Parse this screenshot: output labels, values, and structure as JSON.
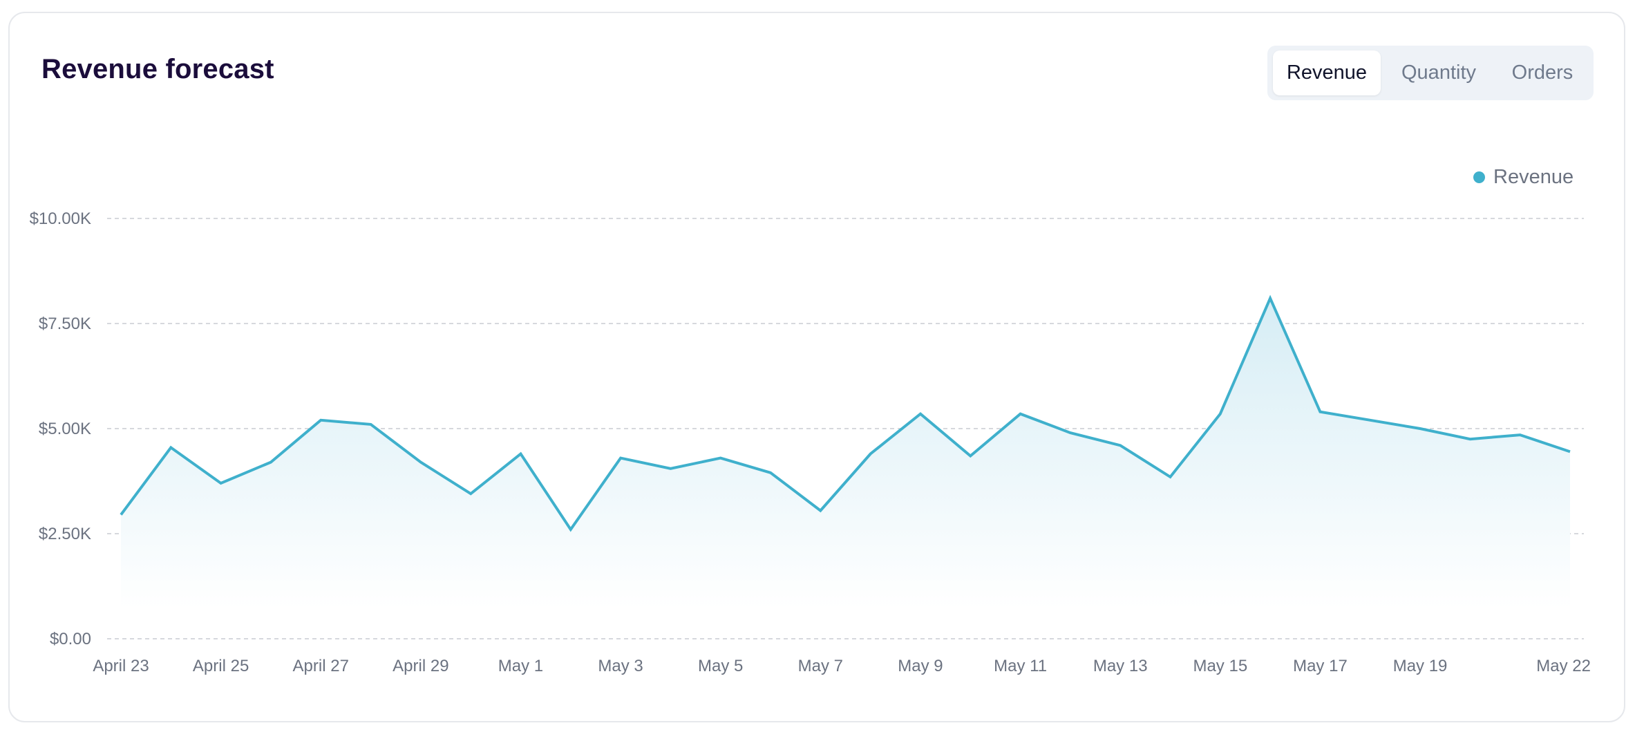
{
  "card": {
    "title": "Revenue forecast"
  },
  "tabs": [
    {
      "label": "Revenue",
      "active": true
    },
    {
      "label": "Quantity",
      "active": false
    },
    {
      "label": "Orders",
      "active": false
    }
  ],
  "colors": {
    "series": "#3fb0cc",
    "area_top": "#d6edf5",
    "area_bottom": "#ffffff",
    "grid": "#c9ccd2",
    "title": "#1b0d3b"
  },
  "chart_data": {
    "type": "area",
    "x_ticks": [
      "April 23",
      "April 25",
      "April 27",
      "April 29",
      "May 1",
      "May 3",
      "May 5",
      "May 7",
      "May 9",
      "May 11",
      "May 13",
      "May 15",
      "May 17",
      "May 19",
      "May 22"
    ],
    "y_ticks": [
      "$0.00",
      "$2.50K",
      "$5.00K",
      "$7.50K",
      "$10.00K"
    ],
    "ylim": [
      0,
      10000
    ],
    "grid": true,
    "legend": "top-right",
    "series": [
      {
        "name": "Revenue",
        "x": [
          "April 23",
          "April 24",
          "April 25",
          "April 26",
          "April 27",
          "April 28",
          "April 29",
          "April 30",
          "May 1",
          "May 2",
          "May 3",
          "May 4",
          "May 5",
          "May 6",
          "May 7",
          "May 8",
          "May 9",
          "May 10",
          "May 11",
          "May 12",
          "May 13",
          "May 14",
          "May 15",
          "May 16",
          "May 17",
          "May 18",
          "May 19",
          "May 20",
          "May 21",
          "May 22"
        ],
        "values": [
          2950,
          4550,
          3700,
          4200,
          5200,
          5100,
          4200,
          3450,
          4400,
          2600,
          4300,
          4050,
          4300,
          3950,
          3050,
          4400,
          5350,
          4350,
          5350,
          4900,
          4600,
          3850,
          5350,
          8100,
          5400,
          5200,
          5000,
          4750,
          4850,
          4450
        ]
      }
    ]
  }
}
